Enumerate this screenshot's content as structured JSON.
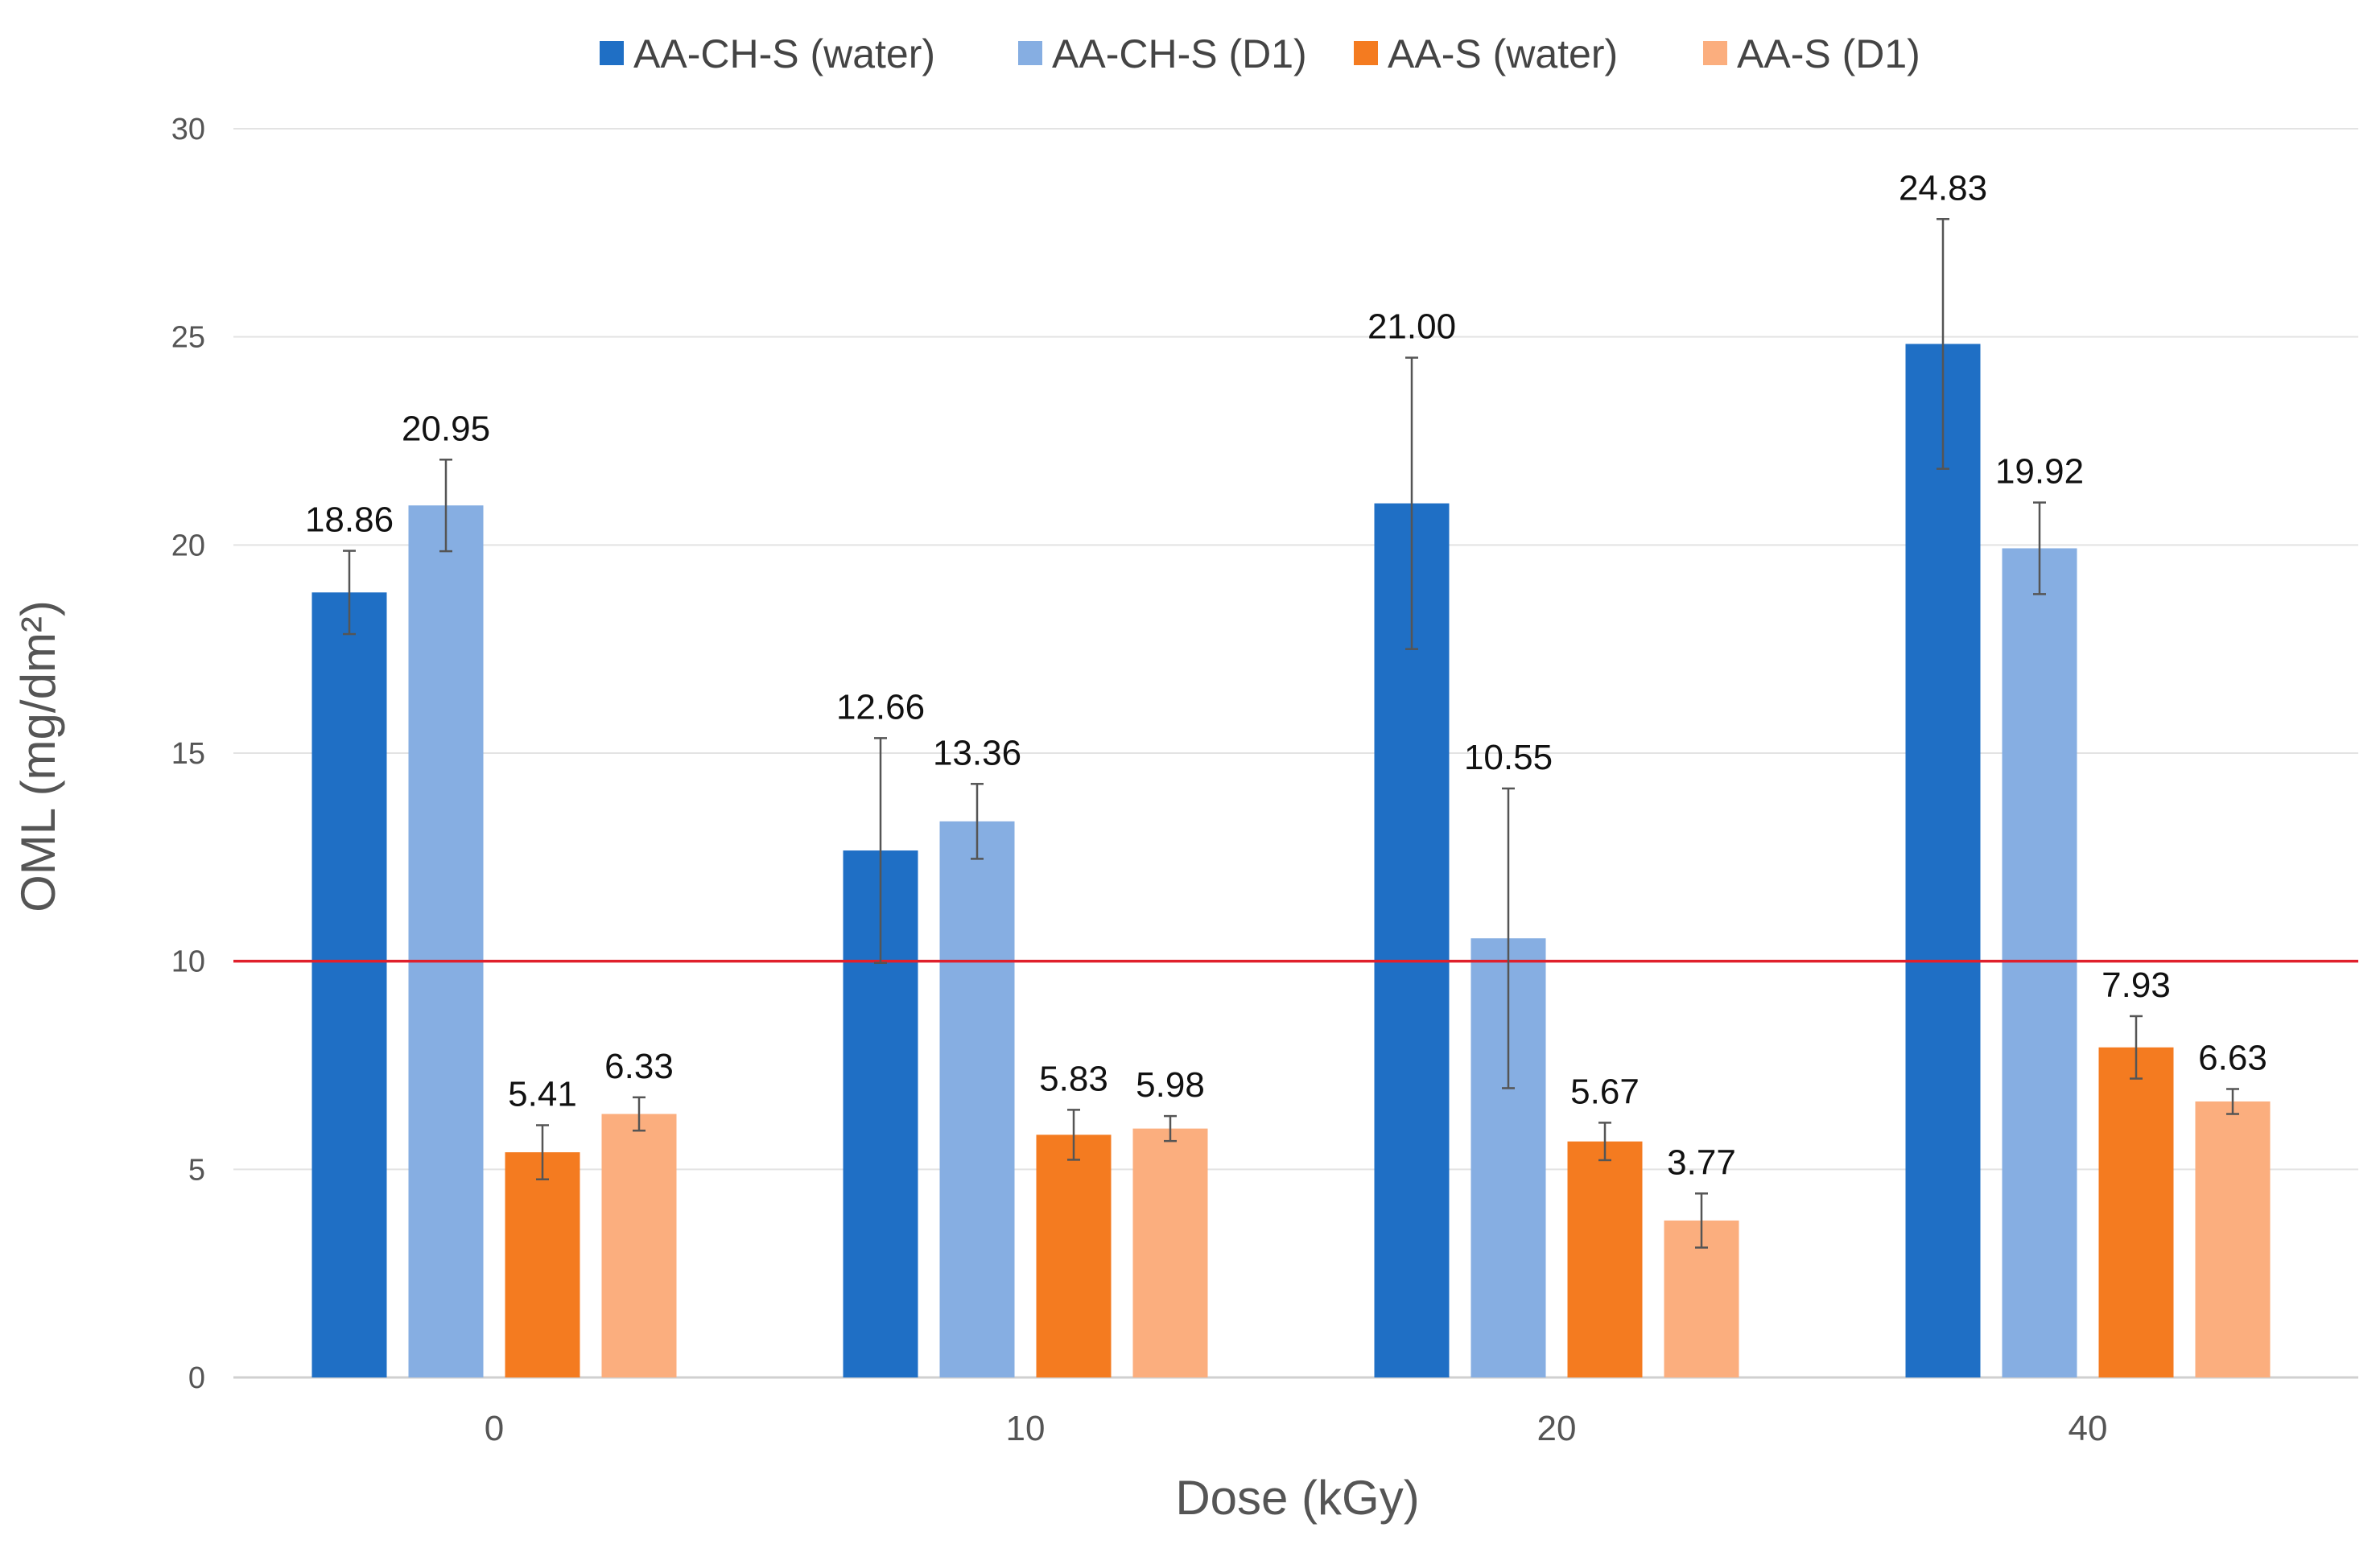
{
  "chart_data": {
    "type": "bar",
    "title": "",
    "xlabel": "Dose (kGy)",
    "ylabel": "OML (mg/dm²)",
    "ylim": [
      0,
      30
    ],
    "yticks": [
      0,
      5,
      10,
      15,
      20,
      25,
      30
    ],
    "grid": true,
    "legend_position": "top-center",
    "categories": [
      "0",
      "10",
      "20",
      "40"
    ],
    "series": [
      {
        "name": "AA-CH-S (water)",
        "color": "#1F6FC5",
        "values": [
          18.86,
          12.66,
          21.0,
          24.83
        ],
        "labels": [
          "18.86",
          "12.66",
          "21.00",
          "24.83"
        ],
        "errors": [
          1.0,
          2.7,
          3.5,
          3.0
        ]
      },
      {
        "name": "AA-CH-S (D1)",
        "color": "#86AEE2",
        "values": [
          20.95,
          13.36,
          10.55,
          19.92
        ],
        "labels": [
          "20.95",
          "13.36",
          "10.55",
          "19.92"
        ],
        "errors": [
          1.1,
          0.9,
          3.6,
          1.1
        ]
      },
      {
        "name": "AA-S (water)",
        "color": "#F47B20",
        "values": [
          5.41,
          5.83,
          5.67,
          7.93
        ],
        "labels": [
          "5.41",
          "5.83",
          "5.67",
          "7.93"
        ],
        "errors": [
          0.65,
          0.6,
          0.45,
          0.75
        ]
      },
      {
        "name": "AA-S (D1)",
        "color": "#FBAE7E",
        "values": [
          6.33,
          5.98,
          3.77,
          6.63
        ],
        "labels": [
          "6.33",
          "5.98",
          "3.77",
          "6.63"
        ],
        "errors": [
          0.4,
          0.3,
          0.65,
          0.3
        ]
      }
    ],
    "reference_line": {
      "value": 10,
      "color": "#E0202C"
    }
  }
}
